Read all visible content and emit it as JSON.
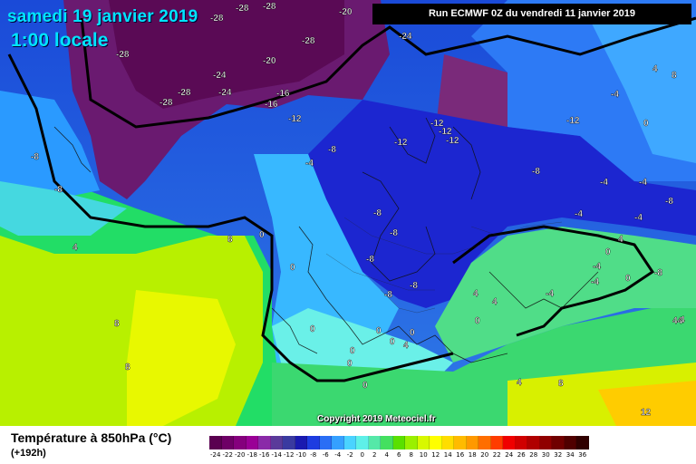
{
  "header": {
    "date": "samedi 19 janvier 2019",
    "time": "1:00 locale",
    "run": "Run ECMWF 0Z du vendredi 11 janvier 2019"
  },
  "footer": {
    "variable": "Température à 850hPa (°C)",
    "lead": "(+192h)",
    "copyright": "Copyright 2019 Meteociel.fr"
  },
  "legend": {
    "values": [
      "-24",
      "-22",
      "-20",
      "-18",
      "-16",
      "-14",
      "-12",
      "-10",
      "-8",
      "-6",
      "-4",
      "-2",
      "0",
      "2",
      "4",
      "6",
      "8",
      "10",
      "12",
      "14",
      "16",
      "18",
      "20",
      "22",
      "24",
      "26",
      "28",
      "30",
      "32",
      "34",
      "36"
    ],
    "colors": [
      "#5a0050",
      "#6e0066",
      "#85007d",
      "#9a0096",
      "#8a2aa8",
      "#5a3a9a",
      "#3a3aa0",
      "#1a1ab0",
      "#1e3ce0",
      "#2a6ef5",
      "#35a0ff",
      "#4ad3ff",
      "#5ef0e8",
      "#55e8a8",
      "#44e060",
      "#5ae000",
      "#9af000",
      "#d8f800",
      "#ffff00",
      "#ffdd00",
      "#ffbb00",
      "#ff9900",
      "#ff6e00",
      "#ff3c00",
      "#f00000",
      "#d00000",
      "#b00000",
      "#900000",
      "#700000",
      "#500000",
      "#300000"
    ]
  },
  "map_labels": [
    {
      "t": "-28"
    },
    {
      "t": "-28"
    },
    {
      "t": "-20"
    },
    {
      "t": "-28"
    },
    {
      "t": "-24"
    },
    {
      "t": "-28"
    },
    {
      "t": "-20"
    },
    {
      "t": "-24"
    },
    {
      "t": "-28"
    },
    {
      "t": "-28"
    },
    {
      "t": "-24"
    },
    {
      "t": "-28"
    },
    {
      "t": "-16"
    },
    {
      "t": "-16"
    },
    {
      "t": "-12"
    },
    {
      "t": "-12"
    },
    {
      "t": "-12"
    },
    {
      "t": "-12"
    },
    {
      "t": "-12"
    },
    {
      "t": "-12"
    },
    {
      "t": "-8"
    },
    {
      "t": "-8"
    },
    {
      "t": "-8"
    },
    {
      "t": "-4"
    },
    {
      "t": "-8"
    },
    {
      "t": "-8"
    },
    {
      "t": "-8"
    },
    {
      "t": "-8"
    },
    {
      "t": "-8"
    },
    {
      "t": "-8"
    },
    {
      "t": "-4"
    },
    {
      "t": "-4"
    },
    {
      "t": "-4"
    },
    {
      "t": "-4"
    },
    {
      "t": "-8"
    },
    {
      "t": "-4"
    },
    {
      "t": "0"
    },
    {
      "t": "4"
    },
    {
      "t": "8"
    },
    {
      "t": "0"
    },
    {
      "t": "8"
    },
    {
      "t": "8"
    },
    {
      "t": "0"
    },
    {
      "t": "0"
    },
    {
      "t": "0"
    },
    {
      "t": "0"
    },
    {
      "t": "4"
    },
    {
      "t": "0"
    },
    {
      "t": "0"
    },
    {
      "t": "4"
    },
    {
      "t": "0"
    },
    {
      "t": "-4"
    },
    {
      "t": "0"
    },
    {
      "t": "4"
    },
    {
      "t": "44"
    },
    {
      "t": "4"
    },
    {
      "t": "12"
    },
    {
      "t": "8"
    },
    {
      "t": "4"
    },
    {
      "t": "-4"
    },
    {
      "t": "-4"
    },
    {
      "t": "-8"
    },
    {
      "t": "4"
    },
    {
      "t": "0"
    },
    {
      "t": "0"
    },
    {
      "t": "0"
    },
    {
      "t": "8"
    },
    {
      "t": "4"
    }
  ]
}
